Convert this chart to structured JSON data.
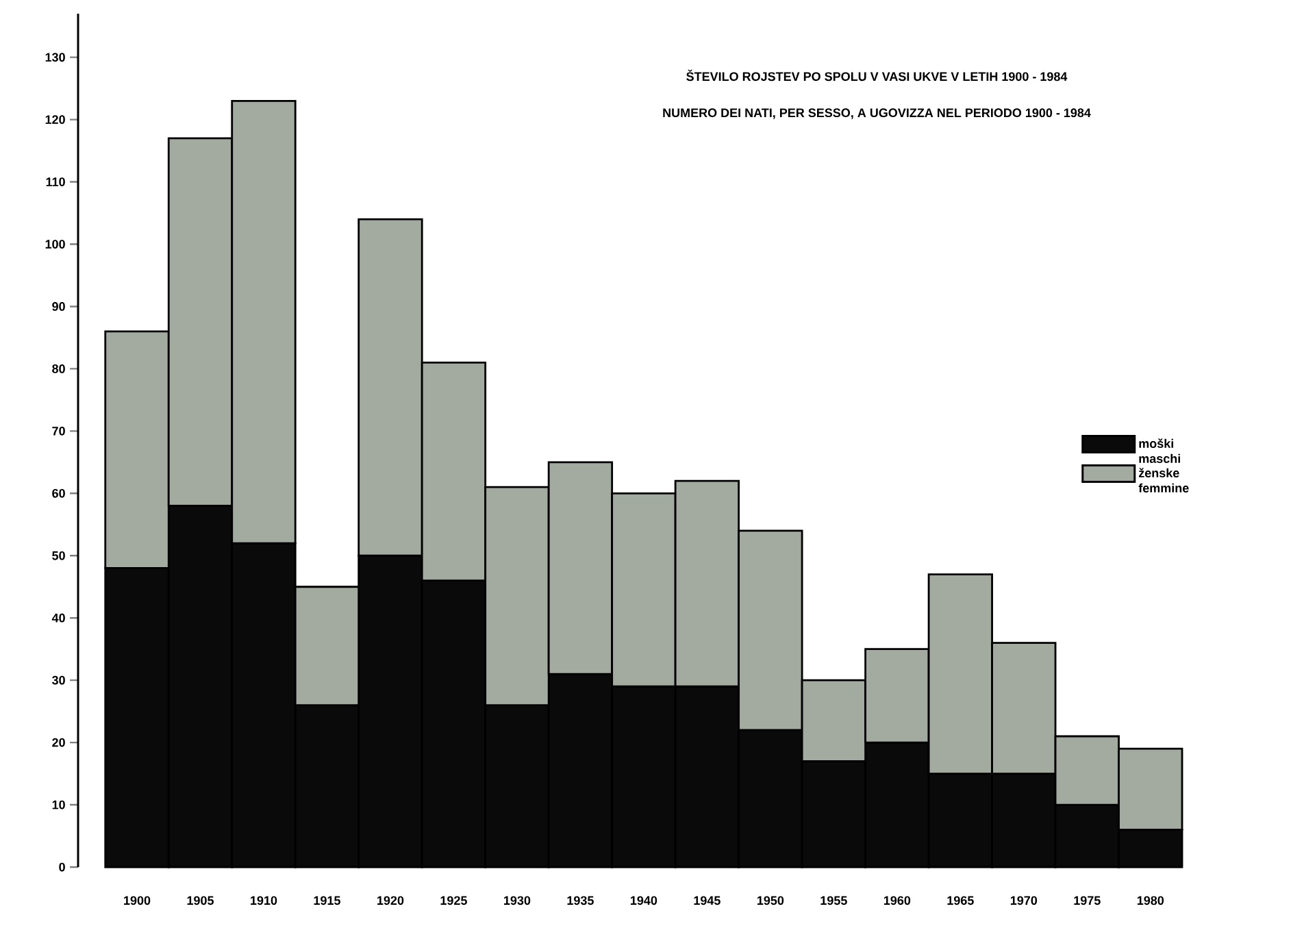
{
  "chart_data": {
    "type": "bar",
    "stacked": true,
    "title": "ŠTEVILO ROJSTEV PO SPOLU V VASI UKVE V LETIH 1900 - 1984",
    "subtitle": "NUMERO DEI NATI, PER SESSO, A UGOVIZZA NEL PERIODO 1900 - 1984",
    "categories": [
      "1900",
      "1905",
      "1910",
      "1915",
      "1920",
      "1925",
      "1930",
      "1935",
      "1940",
      "1945",
      "1950",
      "1955",
      "1960",
      "1965",
      "1970",
      "1975",
      "1980"
    ],
    "series": [
      {
        "name": "moški maschi",
        "color": "#0a0a0a",
        "values": [
          48,
          58,
          52,
          26,
          50,
          46,
          26,
          31,
          29,
          29,
          22,
          17,
          20,
          15,
          15,
          10,
          6
        ]
      },
      {
        "name": "ženske femmine",
        "color": "#a3aba0",
        "values": [
          38,
          59,
          71,
          19,
          54,
          35,
          35,
          34,
          31,
          33,
          32,
          13,
          15,
          32,
          21,
          11,
          13
        ]
      }
    ],
    "ylim": [
      0,
      137
    ],
    "yticks": [
      0,
      10,
      20,
      30,
      40,
      50,
      60,
      70,
      80,
      90,
      100,
      110,
      120,
      130
    ],
    "legend": "right"
  }
}
